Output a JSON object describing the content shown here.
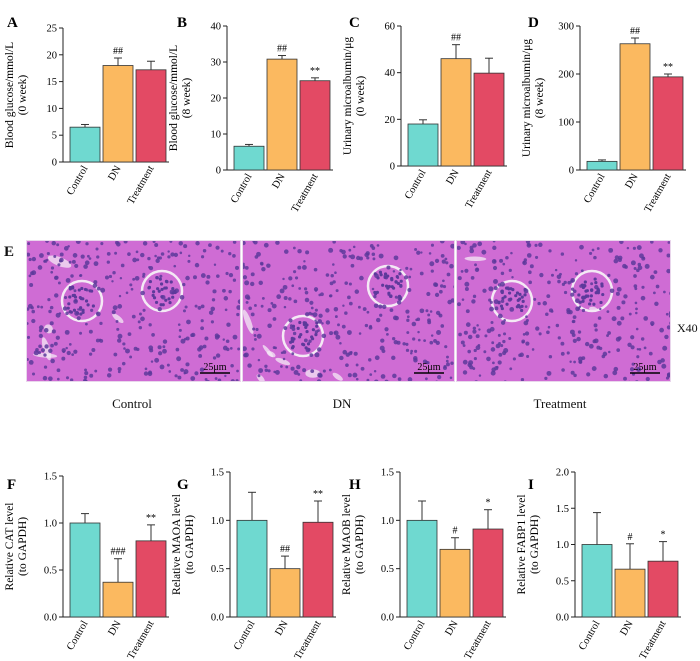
{
  "colors": {
    "control": "#6fd9d0",
    "dn": "#fbb960",
    "treatment": "#e34a64",
    "axis": "#222222",
    "tissue_bg": "#cf6cd4",
    "tissue_nuclei": "#5d3a9b",
    "tissue_lumen": "#f4e9f5"
  },
  "histology": {
    "letter": "E",
    "magnification": "X40",
    "panels": [
      {
        "caption": "Control",
        "scale_bar": "25μm"
      },
      {
        "caption": "DN",
        "scale_bar": "25μm"
      },
      {
        "caption": "Treatment",
        "scale_bar": "25μm"
      }
    ]
  },
  "chart_data": [
    {
      "letter": "A",
      "type": "bar",
      "ylabel_lines": [
        "Blood glucose/mmol/L",
        "(0 week)"
      ],
      "categories": [
        "Control",
        "DN",
        "Treatment"
      ],
      "values": [
        6.5,
        18.0,
        17.2
      ],
      "errors": [
        0.5,
        1.4,
        1.6
      ],
      "annotations": [
        "",
        "##",
        ""
      ],
      "ylim": [
        0,
        25
      ],
      "yticks": [
        "0",
        "5",
        "10",
        "15",
        "20",
        "25"
      ]
    },
    {
      "letter": "B",
      "type": "bar",
      "ylabel_lines": [
        "Blood glucose/mmol/L",
        "(8 week)"
      ],
      "categories": [
        "Control",
        "DN",
        "Treatment"
      ],
      "values": [
        6.6,
        30.8,
        24.8
      ],
      "errors": [
        0.5,
        1.0,
        0.8
      ],
      "annotations": [
        "",
        "##",
        "**"
      ],
      "ylim": [
        0,
        40
      ],
      "yticks": [
        "0",
        "10",
        "20",
        "30",
        "40"
      ]
    },
    {
      "letter": "C",
      "type": "bar",
      "ylabel_lines": [
        "Urinary microalbumin/μg",
        "(0 week)"
      ],
      "categories": [
        "Control",
        "DN",
        "Treatment"
      ],
      "values": [
        18.0,
        46.0,
        39.8
      ],
      "errors": [
        1.8,
        6.0,
        6.4
      ],
      "annotations": [
        "",
        "##",
        ""
      ],
      "ylim": [
        0,
        60
      ],
      "yticks": [
        "0",
        "20",
        "40",
        "60"
      ]
    },
    {
      "letter": "D",
      "type": "bar",
      "ylabel_lines": [
        "Urinary microalbumin/μg",
        "(8 week)"
      ],
      "categories": [
        "Control",
        "DN",
        "Treatment"
      ],
      "values": [
        18.0,
        263.0,
        194.0
      ],
      "errors": [
        3.0,
        12.0,
        6.0
      ],
      "annotations": [
        "",
        "##",
        "**"
      ],
      "ylim": [
        0,
        300
      ],
      "yticks": [
        "0",
        "100",
        "200",
        "300"
      ]
    },
    {
      "letter": "F",
      "type": "bar",
      "ylabel_lines": [
        "Relative CAT level",
        "(to GAPDH)"
      ],
      "categories": [
        "Control",
        "DN",
        "Treatment"
      ],
      "values": [
        1.0,
        0.37,
        0.81
      ],
      "errors": [
        0.1,
        0.25,
        0.17
      ],
      "annotations": [
        "",
        "###",
        "**"
      ],
      "ylim": [
        0,
        1.5
      ],
      "yticks": [
        "0.0",
        "0.5",
        "1.0",
        "1.5"
      ]
    },
    {
      "letter": "G",
      "type": "bar",
      "ylabel_lines": [
        "Relative MAOA level",
        "(to GAPDH)"
      ],
      "categories": [
        "Control",
        "DN",
        "Treatment"
      ],
      "values": [
        1.0,
        0.5,
        0.98
      ],
      "errors": [
        0.29,
        0.13,
        0.22
      ],
      "annotations": [
        "",
        "##",
        "**"
      ],
      "ylim": [
        0,
        1.5
      ],
      "yticks": [
        "0.0",
        "0.5",
        "1.0",
        "1.5"
      ]
    },
    {
      "letter": "H",
      "type": "bar",
      "ylabel_lines": [
        "Relative MAOB level",
        "(to GAPDH)"
      ],
      "categories": [
        "Control",
        "DN",
        "Treatment"
      ],
      "values": [
        1.0,
        0.7,
        0.91
      ],
      "errors": [
        0.2,
        0.12,
        0.2
      ],
      "annotations": [
        "",
        "#",
        "*"
      ],
      "ylim": [
        0,
        1.5
      ],
      "yticks": [
        "0.0",
        "0.5",
        "1.0",
        "1.5"
      ]
    },
    {
      "letter": "I",
      "type": "bar",
      "ylabel_lines": [
        "Relative FABP1 level",
        "(to GAPDH)"
      ],
      "categories": [
        "Control",
        "DN",
        "Treatment"
      ],
      "values": [
        1.0,
        0.66,
        0.77
      ],
      "errors": [
        0.44,
        0.35,
        0.27
      ],
      "annotations": [
        "",
        "#",
        "*"
      ],
      "ylim": [
        0,
        2.0
      ],
      "yticks": [
        "0.0",
        "0.5",
        "1.0",
        "1.5",
        "2.0"
      ]
    }
  ]
}
